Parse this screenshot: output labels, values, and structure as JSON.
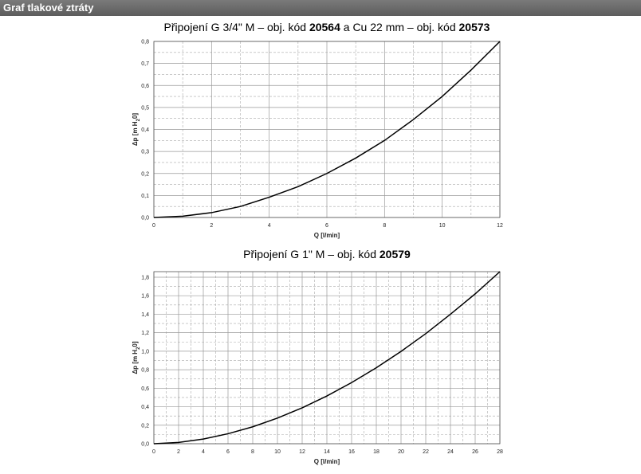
{
  "header": {
    "title": "Graf tlakové ztráty"
  },
  "chart_data": [
    {
      "type": "line",
      "title": [
        {
          "text": "Připojení G 3/4\" M – obj. kód ",
          "bold": false
        },
        {
          "text": "20564",
          "bold": true
        },
        {
          "text": " a Cu 22 mm – obj. kód ",
          "bold": false
        },
        {
          "text": "20573",
          "bold": true
        }
      ],
      "x_label": "Q [l/min]",
      "y_label": [
        {
          "text": "Δp [m H",
          "sub": false
        },
        {
          "text": "2",
          "sub": true
        },
        {
          "text": "0]",
          "sub": false
        }
      ],
      "x": [
        0,
        1,
        2,
        3,
        4,
        5,
        6,
        7,
        8,
        9,
        10,
        11,
        12
      ],
      "series": [
        {
          "color": "#000000",
          "values": [
            0,
            0.006,
            0.022,
            0.05,
            0.092,
            0.14,
            0.2,
            0.27,
            0.35,
            0.445,
            0.55,
            0.67,
            0.8
          ]
        }
      ],
      "xlim": [
        0,
        12
      ],
      "xticks": [
        0,
        2,
        4,
        6,
        8,
        10,
        12
      ],
      "ylim": [
        0,
        0.8
      ],
      "yticks": [
        {
          "value": 0,
          "label": "0,0"
        },
        {
          "value": 0.1,
          "label": "0,1"
        },
        {
          "value": 0.2,
          "label": "0,2"
        },
        {
          "value": 0.3,
          "label": "0,3"
        },
        {
          "value": 0.4,
          "label": "0,4"
        },
        {
          "value": 0.5,
          "label": "0,5"
        },
        {
          "value": 0.6,
          "label": "0,6"
        },
        {
          "value": 0.7,
          "label": "0,7"
        },
        {
          "value": 0.8,
          "label": "0,8"
        }
      ],
      "grid": true
    },
    {
      "type": "line",
      "title": [
        {
          "text": "Připojení G 1\" M – obj. kód ",
          "bold": false
        },
        {
          "text": "20579",
          "bold": true
        }
      ],
      "x_label": "Q [l/min]",
      "y_label": [
        {
          "text": "Δp [m H",
          "sub": false
        },
        {
          "text": "2",
          "sub": true
        },
        {
          "text": "0]",
          "sub": false
        }
      ],
      "x": [
        0,
        2,
        4,
        6,
        8,
        10,
        12,
        14,
        16,
        18,
        20,
        22,
        24,
        26,
        28
      ],
      "series": [
        {
          "color": "#000000",
          "values": [
            0,
            0.014,
            0.051,
            0.108,
            0.183,
            0.277,
            0.388,
            0.516,
            0.661,
            0.821,
            0.998,
            1.19,
            1.4,
            1.62,
            1.86
          ]
        }
      ],
      "xlim": [
        0,
        28
      ],
      "xticks": [
        0,
        2,
        4,
        6,
        8,
        10,
        12,
        14,
        16,
        18,
        20,
        22,
        24,
        26,
        28
      ],
      "ylim": [
        0,
        1.86
      ],
      "yticks": [
        {
          "value": 0,
          "label": "0,0"
        },
        {
          "value": 0.2,
          "label": "0,2"
        },
        {
          "value": 0.4,
          "label": "0,4"
        },
        {
          "value": 0.6,
          "label": "0,6"
        },
        {
          "value": 0.8,
          "label": "0,8"
        },
        {
          "value": 1.0,
          "label": "1,0"
        },
        {
          "value": 1.2,
          "label": "1,2"
        },
        {
          "value": 1.4,
          "label": "1,4"
        },
        {
          "value": 1.6,
          "label": "1,6"
        },
        {
          "value": 1.8,
          "label": "1,8"
        }
      ],
      "grid": true
    }
  ]
}
